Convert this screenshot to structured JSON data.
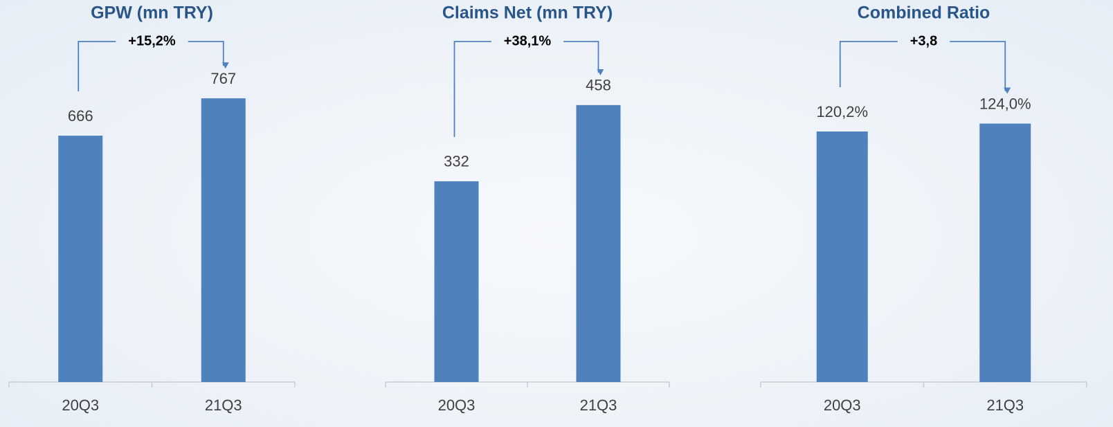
{
  "chart_data": [
    {
      "type": "bar",
      "title": "GPW (mn TRY)",
      "categories": [
        "20Q3",
        "21Q3"
      ],
      "values": [
        666,
        767
      ],
      "color": "#4f81bd",
      "ylim": [
        0,
        958
      ],
      "annotation": "+15,2%"
    },
    {
      "type": "bar",
      "title": "Claims Net (mn TRY)",
      "categories": [
        "20Q3",
        "21Q3"
      ],
      "values": [
        332,
        458
      ],
      "color": "#4f81bd",
      "ylim": [
        0,
        586
      ],
      "annotation": "+38,1%"
    },
    {
      "type": "bar",
      "title": "Combined Ratio",
      "categories": [
        "20Q3",
        "21Q3"
      ],
      "values": [
        120.2,
        124.0
      ],
      "value_labels": [
        "120,2%",
        "124,0%"
      ],
      "color": "#4f81bd",
      "ylim": [
        0,
        170
      ],
      "annotation": "+3,8"
    }
  ]
}
